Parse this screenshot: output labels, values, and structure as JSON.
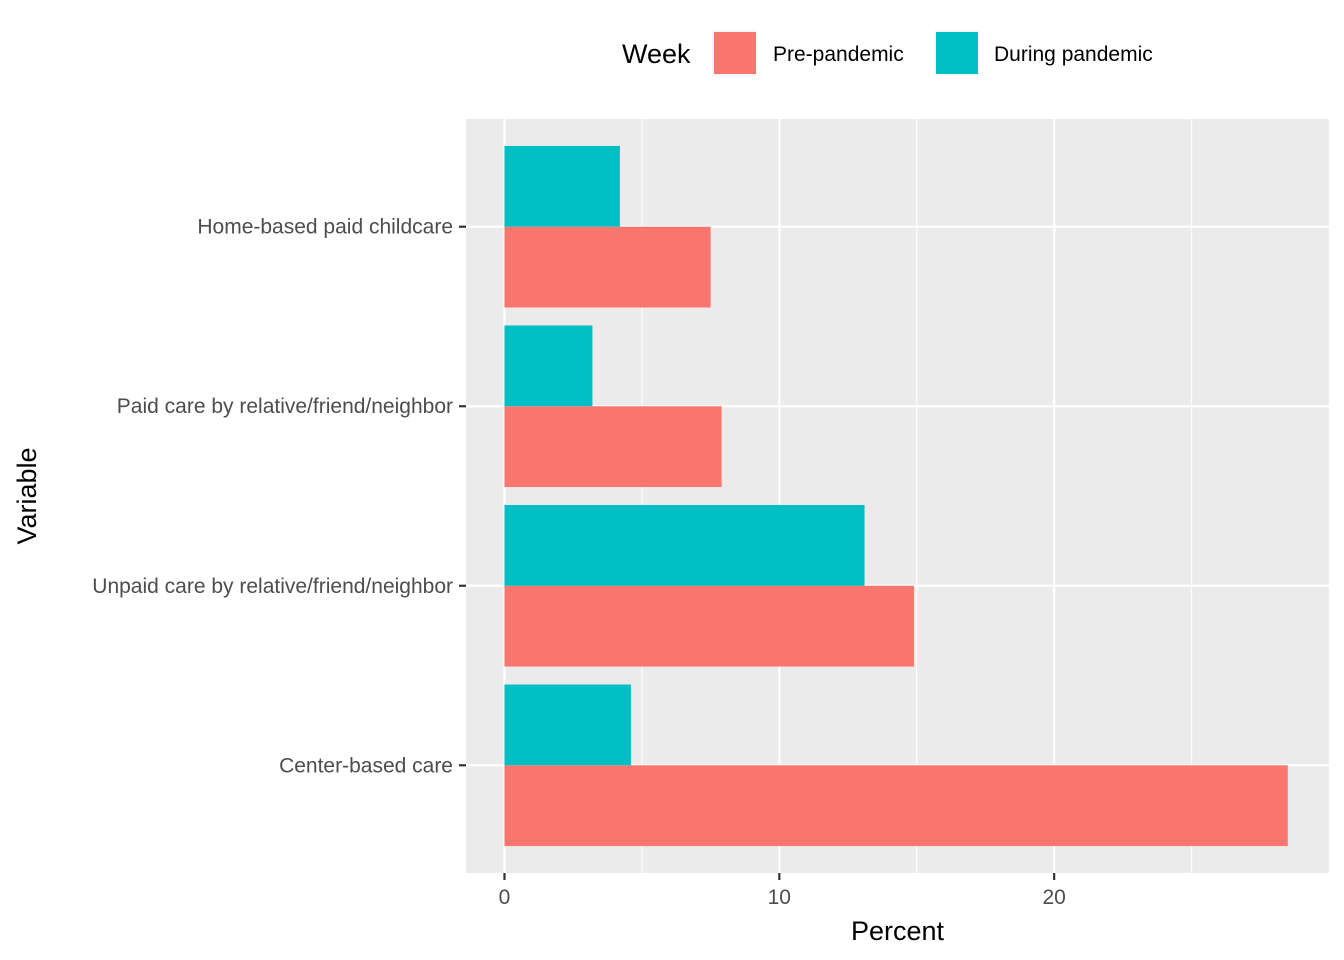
{
  "chart_data": {
    "type": "bar",
    "orientation": "horizontal",
    "categories": [
      "Center-based care",
      "Unpaid care by relative/friend/neighbor",
      "Paid care by relative/friend/neighbor",
      "Home-based paid childcare"
    ],
    "series": [
      {
        "name": "Pre-pandemic",
        "color": "#F8766D",
        "values": [
          28.5,
          14.9,
          7.9,
          7.5
        ]
      },
      {
        "name": "During pandemic",
        "color": "#00BFC4",
        "values": [
          4.6,
          13.1,
          3.2,
          4.2
        ]
      }
    ],
    "xlabel": "Percent",
    "ylabel": "Variable",
    "xlim": [
      -1.4,
      30.0
    ],
    "x_ticks": [
      "0",
      "10",
      "20"
    ],
    "x_tick_values": [
      0,
      10,
      20
    ],
    "legend": {
      "title": "Week",
      "placement": "top"
    },
    "grid": true,
    "panel_background": "#EBEBEB"
  }
}
